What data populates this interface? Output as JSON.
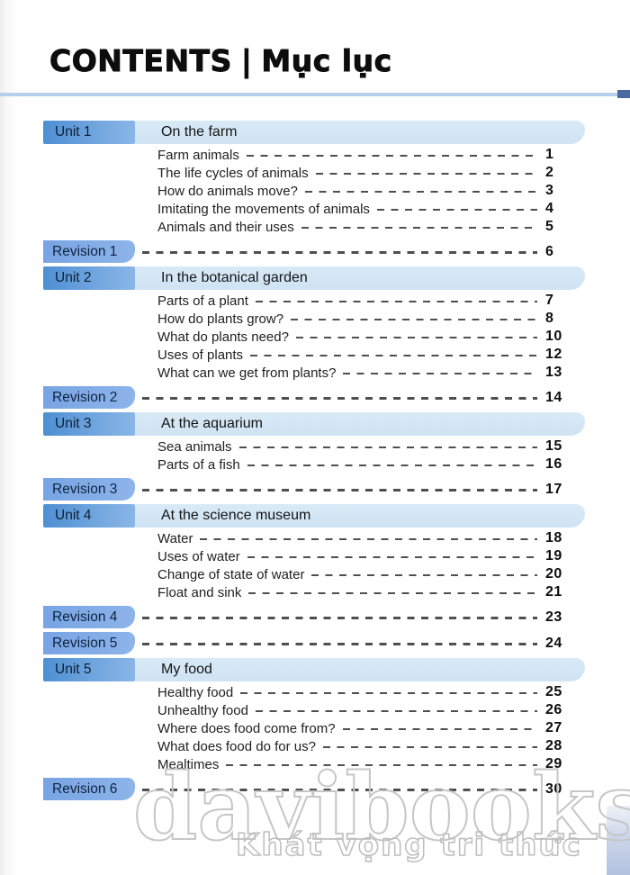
{
  "header": {
    "title_en": "CONTENTS",
    "separator": "|",
    "title_vi": "Mục lục"
  },
  "toc": {
    "sections": [
      {
        "type": "unit",
        "label": "Unit 1",
        "title": "On the farm",
        "items": [
          {
            "title": "Farm animals",
            "page": "1"
          },
          {
            "title": "The life cycles of animals",
            "page": "2"
          },
          {
            "title": "How do animals move?",
            "page": "3"
          },
          {
            "title": "Imitating the movements of animals",
            "page": "4"
          },
          {
            "title": "Animals and their uses",
            "page": "5"
          }
        ]
      },
      {
        "type": "revision",
        "label": "Revision 1",
        "page": "6"
      },
      {
        "type": "unit",
        "label": "Unit 2",
        "title": "In the botanical garden",
        "items": [
          {
            "title": "Parts of a plant",
            "page": "7"
          },
          {
            "title": "How do plants grow?",
            "page": "8"
          },
          {
            "title": "What do plants need?",
            "page": "10"
          },
          {
            "title": "Uses of plants",
            "page": "12"
          },
          {
            "title": "What can we get from plants?",
            "page": "13"
          }
        ]
      },
      {
        "type": "revision",
        "label": "Revision 2",
        "page": "14"
      },
      {
        "type": "unit",
        "label": "Unit 3",
        "title": "At the aquarium",
        "items": [
          {
            "title": "Sea animals",
            "page": "15"
          },
          {
            "title": "Parts of a fish",
            "page": "16"
          }
        ]
      },
      {
        "type": "revision",
        "label": "Revision 3",
        "page": "17"
      },
      {
        "type": "unit",
        "label": "Unit 4",
        "title": "At the science museum",
        "items": [
          {
            "title": "Water",
            "page": "18"
          },
          {
            "title": "Uses of water",
            "page": "19"
          },
          {
            "title": "Change of state of water",
            "page": "20"
          },
          {
            "title": "Float and sink",
            "page": "21"
          }
        ]
      },
      {
        "type": "revision",
        "label": "Revision 4",
        "page": "23"
      },
      {
        "type": "revision",
        "label": "Revision 5",
        "page": "24"
      },
      {
        "type": "unit",
        "label": "Unit 5",
        "title": "My food",
        "items": [
          {
            "title": "Healthy food",
            "page": "25"
          },
          {
            "title": "Unhealthy food",
            "page": "26"
          },
          {
            "title": "Where does food come from?",
            "page": "27"
          },
          {
            "title": "What does food do for us?",
            "page": "28"
          },
          {
            "title": "Mealtimes",
            "page": "29"
          }
        ]
      },
      {
        "type": "revision",
        "label": "Revision 6",
        "page": "30"
      }
    ]
  },
  "watermark": {
    "brand": "davibooks",
    "tagline": "Khát vọng tri thức"
  },
  "colors": {
    "unit_box_start": "#4e8fd3",
    "unit_box_end": "#8ab6e7",
    "revision_box": "#78a4e4",
    "unit_title_bar": "#cfe3f3",
    "title_rule": "#b6d0eb",
    "title_rule_dark": "#49699f",
    "leader_dash": "#4f4f4f",
    "text": "#141414"
  }
}
